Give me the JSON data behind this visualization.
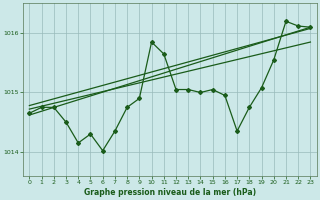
{
  "xlabel": "Graphe pression niveau de la mer (hPa)",
  "background_color": "#cce8e8",
  "plot_bg_color": "#cce8e8",
  "grid_color": "#99bbbb",
  "line_color": "#1a5c1a",
  "ylim": [
    1013.6,
    1016.5
  ],
  "xlim": [
    -0.5,
    23.5
  ],
  "yticks": [
    1014,
    1015,
    1016
  ],
  "xticks": [
    0,
    1,
    2,
    3,
    4,
    5,
    6,
    7,
    8,
    9,
    10,
    11,
    12,
    13,
    14,
    15,
    16,
    17,
    18,
    19,
    20,
    21,
    22,
    23
  ],
  "series1_x": [
    0,
    1,
    2,
    3,
    4,
    5,
    6,
    7,
    8,
    9,
    10,
    11,
    12,
    13,
    14,
    15,
    16,
    17,
    18,
    19,
    20,
    21,
    22,
    23
  ],
  "series1_y": [
    1014.65,
    1014.75,
    1014.75,
    1014.5,
    1014.15,
    1014.3,
    1014.02,
    1014.35,
    1014.75,
    1014.9,
    1015.85,
    1015.65,
    1015.05,
    1015.05,
    1015.0,
    1015.05,
    1014.95,
    1014.35,
    1014.75,
    1015.08,
    1015.55,
    1016.2,
    1016.12,
    1016.1
  ],
  "trend1_x": [
    0,
    23
  ],
  "trend1_y": [
    1014.62,
    1016.1
  ],
  "trend2_x": [
    0,
    23
  ],
  "trend2_y": [
    1014.72,
    1015.85
  ],
  "trend3_x": [
    0,
    23
  ],
  "trend3_y": [
    1014.78,
    1016.08
  ]
}
